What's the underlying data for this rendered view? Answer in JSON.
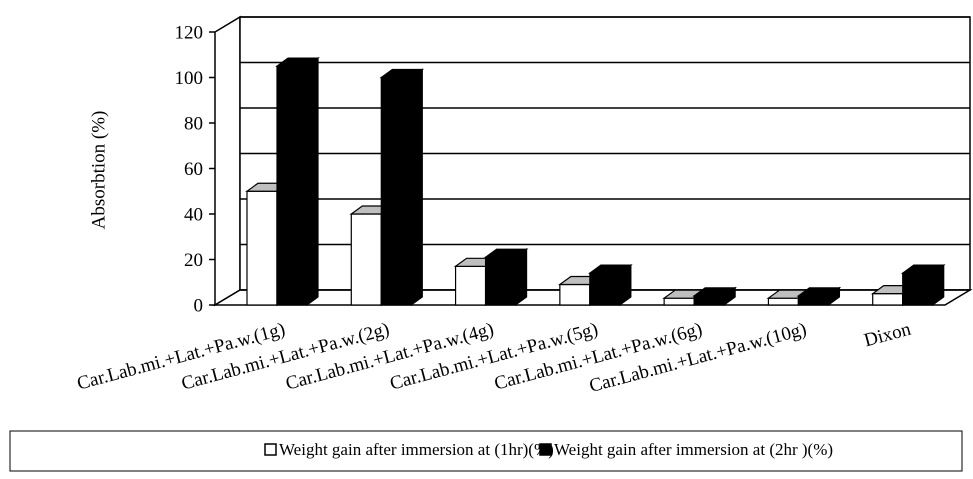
{
  "chart_data": {
    "type": "bar3d",
    "y_label": "Absorbtion (%)",
    "categories": [
      "Car.Lab.mi.+Lat.+Pa.w.(1g)",
      "Car.Lab.mi.+Lat.+Pa.w.(2g)",
      "Car.Lab.mi.+Lat.+Pa.w.(4g)",
      "Car.Lab.mi.+Lat.+Pa.w.(5g)",
      "Car.Lab.mi.+Lat.+Pa.w.(6g)",
      "Car.Lab.mi.+Lat.+Pa.w.(10g)",
      "Dixon"
    ],
    "series": [
      {
        "name": "Weight gain after immersion at (1hr)(%)",
        "color": "#ffffff",
        "values": [
          50,
          40,
          17,
          9,
          3,
          3,
          5
        ]
      },
      {
        "name": "Weight gain after immersion at (2hr )(%)",
        "color": "#000000",
        "values": [
          105,
          100,
          21,
          14,
          4,
          4,
          14
        ]
      }
    ],
    "ylim": [
      0,
      120
    ],
    "yticks": [
      0,
      20,
      40,
      60,
      80,
      100,
      120
    ],
    "grid": true,
    "legend": "bottom"
  }
}
